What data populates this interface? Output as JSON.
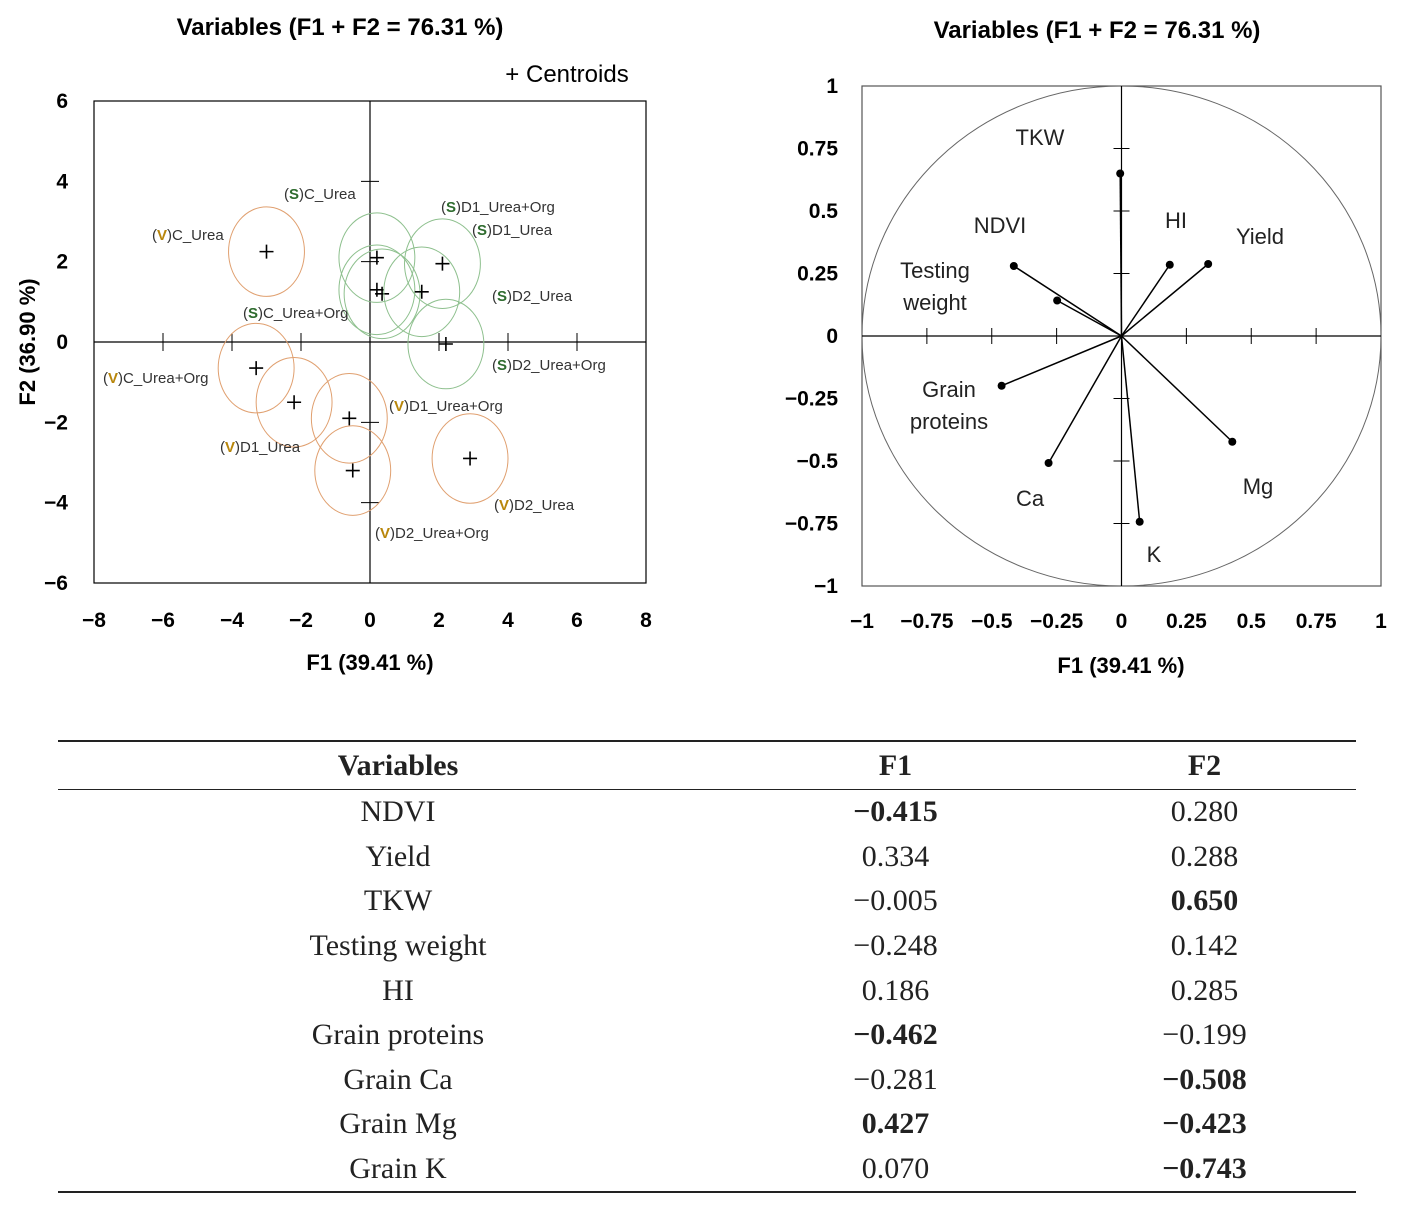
{
  "colors": {
    "V": "#b8860b",
    "S": "#2e6b2e",
    "circleV": "#e0a070",
    "circleS": "#8ec08e",
    "axis": "#000000"
  },
  "chart_data": [
    {
      "type": "scatter",
      "title": "Variables (F1 + F2 = 76.31 %)",
      "legend": "+ Centroids",
      "xlabel": "F1 (39.41 %)",
      "ylabel": "F2 (36.90 %)",
      "xlim": [
        -8,
        8
      ],
      "ylim": [
        -6,
        6
      ],
      "xticks": [
        -8,
        -6,
        -4,
        -2,
        0,
        2,
        4,
        6,
        8
      ],
      "yticks": [
        -6,
        -4,
        -2,
        0,
        2,
        4,
        6
      ],
      "xtick_labels": [
        "−8",
        "−6",
        "−4",
        "−2",
        "0",
        "2",
        "4",
        "6",
        "8"
      ],
      "ytick_labels": [
        "−6",
        "−4",
        "−2",
        "0",
        "2",
        "4",
        "6"
      ],
      "points": [
        {
          "prefix": "V",
          "name": ")C_Urea",
          "x": -3.0,
          "y": 2.25,
          "r": 1.1
        },
        {
          "prefix": "V",
          "name": ")C_Urea+Org",
          "x": -3.3,
          "y": -0.65,
          "r": 1.1
        },
        {
          "prefix": "V",
          "name": ")D1_Urea",
          "x": -2.2,
          "y": -1.5,
          "r": 1.1
        },
        {
          "prefix": "V",
          "name": ")D1_Urea+Org",
          "x": -0.6,
          "y": -1.9,
          "r": 1.1
        },
        {
          "prefix": "V",
          "name": ")D2_Urea",
          "x": 2.9,
          "y": -2.9,
          "r": 1.1
        },
        {
          "prefix": "V",
          "name": ")D2_Urea+Org",
          "x": -0.5,
          "y": -3.2,
          "r": 1.1
        },
        {
          "prefix": "S",
          "name": ")C_Urea",
          "x": 0.2,
          "y": 2.1,
          "r": 1.1
        },
        {
          "prefix": "S",
          "name": ")C_Urea+Org",
          "x": 0.2,
          "y": 1.3,
          "r": 1.1
        },
        {
          "prefix": "S",
          "name": ")D1_Urea+Org",
          "x": 2.1,
          "y": 1.95,
          "r": 1.1
        },
        {
          "prefix": "S",
          "name": ")D1_Urea",
          "x": 0.35,
          "y": 1.2,
          "r": 1.1
        },
        {
          "prefix": "S",
          "name": ")D2_Urea",
          "x": 1.5,
          "y": 1.25,
          "r": 1.1
        },
        {
          "prefix": "S",
          "name": ")D2_Urea+Org",
          "x": 2.2,
          "y": -0.05,
          "r": 1.1
        }
      ]
    },
    {
      "type": "scatter",
      "title": "Variables (F1 + F2 = 76.31 %)",
      "xlabel": "F1 (39.41 %)",
      "xlim": [
        -1,
        1
      ],
      "ylim": [
        -1,
        1
      ],
      "xticks": [
        -1,
        -0.75,
        -0.5,
        -0.25,
        0,
        0.25,
        0.5,
        0.75,
        1
      ],
      "yticks": [
        -1,
        -0.75,
        -0.5,
        -0.25,
        0,
        0.25,
        0.5,
        0.75,
        1
      ],
      "xtick_labels": [
        "−1",
        "−0.75",
        "−0.5",
        "−0.25",
        "0",
        "0.25",
        "0.5",
        "0.75",
        "1"
      ],
      "ytick_labels": [
        "−1",
        "−0.75",
        "−0.5",
        "−0.25",
        "0",
        "0.25",
        "0.5",
        "0.75",
        "1"
      ],
      "vectors": [
        {
          "label": "NDVI",
          "x": -0.415,
          "y": 0.28
        },
        {
          "label": "Yield",
          "x": 0.334,
          "y": 0.288
        },
        {
          "label": "TKW",
          "x": -0.005,
          "y": 0.65
        },
        {
          "label": "Testing\nweight",
          "x": -0.248,
          "y": 0.142
        },
        {
          "label": "HI",
          "x": 0.186,
          "y": 0.285
        },
        {
          "label": "Grain\nproteins",
          "x": -0.462,
          "y": -0.199
        },
        {
          "label": "Ca",
          "x": -0.281,
          "y": -0.508
        },
        {
          "label": "Mg",
          "x": 0.427,
          "y": -0.423
        },
        {
          "label": "K",
          "x": 0.07,
          "y": -0.743
        }
      ]
    },
    {
      "type": "table",
      "columns": [
        "Variables",
        "F1",
        "F2"
      ],
      "rows": [
        {
          "name": "NDVI",
          "f1": "−0.415",
          "f2": "0.280",
          "b1": true,
          "b2": false
        },
        {
          "name": "Yield",
          "f1": "0.334",
          "f2": "0.288",
          "b1": false,
          "b2": false
        },
        {
          "name": "TKW",
          "f1": "−0.005",
          "f2": "0.650",
          "b1": false,
          "b2": true
        },
        {
          "name": "Testing weight",
          "f1": "−0.248",
          "f2": "0.142",
          "b1": false,
          "b2": false
        },
        {
          "name": "HI",
          "f1": "0.186",
          "f2": "0.285",
          "b1": false,
          "b2": false
        },
        {
          "name": "Grain proteins",
          "f1": "−0.462",
          "f2": "−0.199",
          "b1": true,
          "b2": false
        },
        {
          "name": "Grain Ca",
          "f1": "−0.281",
          "f2": "−0.508",
          "b1": false,
          "b2": true
        },
        {
          "name": "Grain Mg",
          "f1": "0.427",
          "f2": "−0.423",
          "b1": true,
          "b2": true
        },
        {
          "name": "Grain K",
          "f1": "0.070",
          "f2": "−0.743",
          "b1": false,
          "b2": true
        }
      ]
    }
  ]
}
